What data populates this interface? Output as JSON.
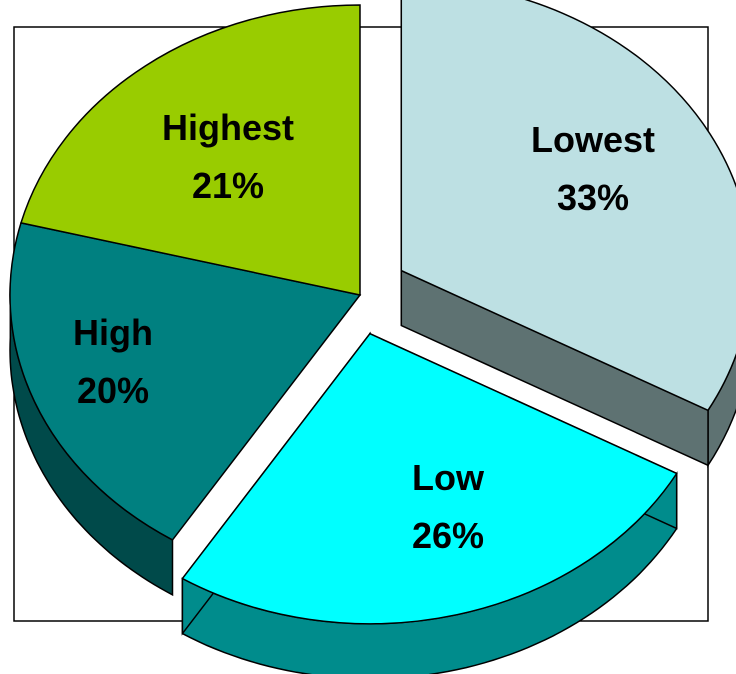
{
  "chart_data": {
    "type": "pie",
    "style": "3d-exploded",
    "slices": [
      {
        "label": "Lowest",
        "percent_label": "33%",
        "value": 33,
        "color": "#bde0e3",
        "side_color": "#5e7272"
      },
      {
        "label": "Low",
        "percent_label": "26%",
        "value": 26,
        "color": "#00ffff",
        "side_color": "#008c8c"
      },
      {
        "label": "High",
        "percent_label": "20%",
        "value": 20,
        "color": "#008080",
        "side_color": "#004a4a"
      },
      {
        "label": "Highest",
        "percent_label": "21%",
        "value": 21,
        "color": "#99cc00",
        "side_color": "#6a8c00"
      }
    ],
    "legend": "none",
    "exploded_slices": [
      "Lowest",
      "Low"
    ]
  }
}
